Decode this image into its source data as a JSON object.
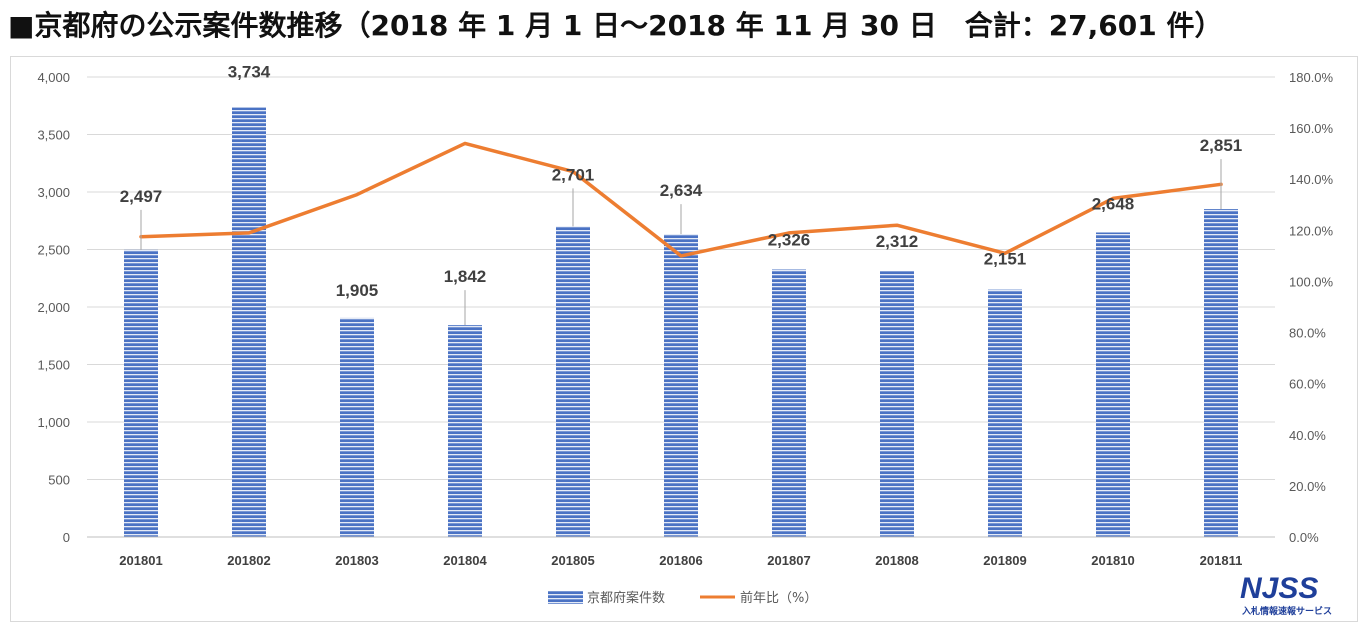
{
  "title": "■京都府の公示案件数推移（2018 年 1 月 1 日～2018 年 11 月 30 日　合計：27,601 件）",
  "colors": {
    "bar": "#4a72c4",
    "bar_stripe": "#ffffff",
    "line": "#ed7d31",
    "grid": "#d9d9d9"
  },
  "chart_data": {
    "type": "bar",
    "categories": [
      "201801",
      "201802",
      "201803",
      "201804",
      "201805",
      "201806",
      "201807",
      "201808",
      "201809",
      "201810",
      "201811"
    ],
    "series": [
      {
        "name": "京都府案件数",
        "type": "bar",
        "axis": "left",
        "values": [
          2497,
          3734,
          1905,
          1842,
          2701,
          2634,
          2326,
          2312,
          2151,
          2648,
          2851
        ]
      },
      {
        "name": "前年比（%）",
        "type": "line",
        "axis": "right",
        "values": [
          117.5,
          119,
          134,
          154,
          143,
          110,
          119,
          122,
          111,
          132.5,
          138
        ]
      }
    ],
    "data_labels": [
      "2,497",
      "3,734",
      "1,905",
      "1,842",
      "2,701",
      "2,634",
      "2,326",
      "2,312",
      "2,151",
      "2,648",
      "2,851"
    ],
    "ylim_left": [
      0,
      4000
    ],
    "ylim_right": [
      0,
      180
    ],
    "left_ticks": [
      "0",
      "500",
      "1,000",
      "1,500",
      "2,000",
      "2,500",
      "3,000",
      "3,500",
      "4,000"
    ],
    "right_ticks": [
      "0.0%",
      "20.0%",
      "40.0%",
      "60.0%",
      "80.0%",
      "100.0%",
      "120.0%",
      "140.0%",
      "160.0%",
      "180.0%"
    ],
    "grid": true,
    "legend_position": "bottom"
  },
  "logo": {
    "main": "NJSS",
    "sub": "入札情報速報サービス"
  }
}
